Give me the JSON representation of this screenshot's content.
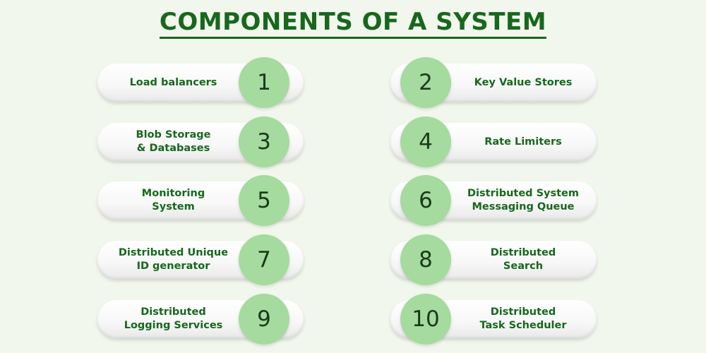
{
  "title": "COMPONENTS OF A SYSTEM",
  "colors": {
    "background": "#f1f7ec",
    "accent_green": "#17671d",
    "badge_green": "#a5db9e",
    "pill_white": "#ffffff"
  },
  "components": [
    {
      "number": "1",
      "label": "Load balancers"
    },
    {
      "number": "2",
      "label": "Key Value Stores"
    },
    {
      "number": "3",
      "label": "Blob Storage\n& Databases"
    },
    {
      "number": "4",
      "label": "Rate Limiters"
    },
    {
      "number": "5",
      "label": "Monitoring\nSystem"
    },
    {
      "number": "6",
      "label": "Distributed System\nMessaging Queue"
    },
    {
      "number": "7",
      "label": "Distributed Unique\nID generator"
    },
    {
      "number": "8",
      "label": "Distributed\nSearch"
    },
    {
      "number": "9",
      "label": "Distributed\nLogging Services"
    },
    {
      "number": "10",
      "label": "Distributed\nTask Scheduler"
    }
  ]
}
